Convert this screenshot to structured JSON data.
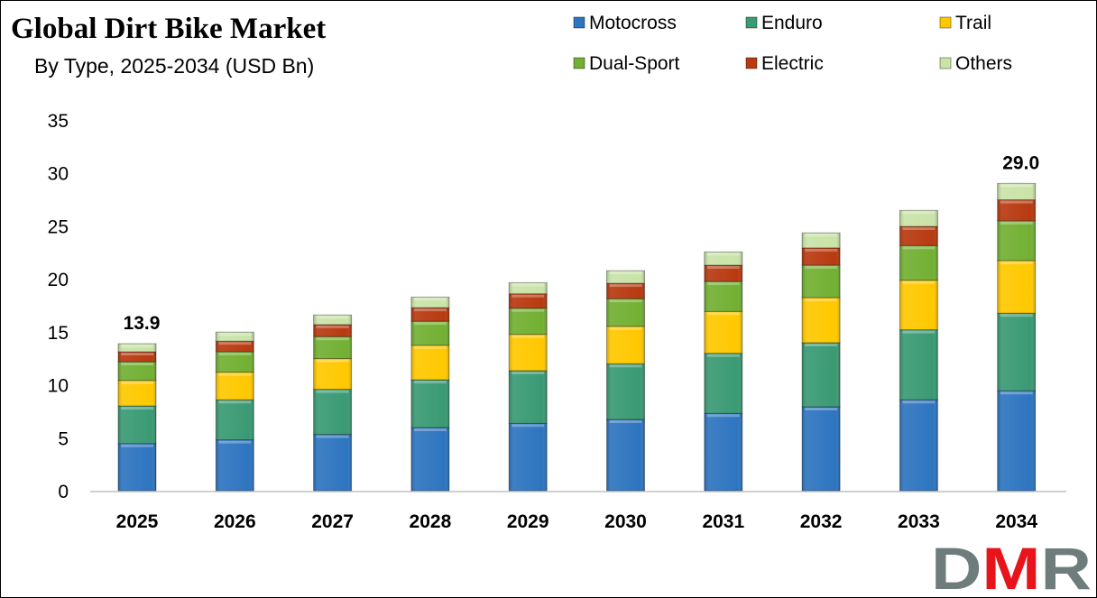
{
  "chart_data": {
    "type": "bar",
    "stacked": true,
    "title": "Global Dirt Bike Market",
    "subtitle": "By Type, 2025-2034 (USD Bn)",
    "xlabel": "",
    "ylabel": "",
    "ylim": [
      0,
      35
    ],
    "yticks": [
      0,
      5,
      10,
      15,
      20,
      25,
      30,
      35
    ],
    "grid": false,
    "legend_position": "top-right",
    "categories": [
      "2025",
      "2026",
      "2027",
      "2028",
      "2029",
      "2030",
      "2031",
      "2032",
      "2033",
      "2034"
    ],
    "series": [
      {
        "name": "Motocross",
        "color": "#2E75C0",
        "values": [
          4.45,
          4.8,
          5.31,
          5.96,
          6.36,
          6.73,
          7.3,
          7.92,
          8.58,
          9.43
        ]
      },
      {
        "name": "Enduro",
        "color": "#3A9A74",
        "values": [
          3.55,
          3.78,
          4.26,
          4.51,
          4.97,
          5.25,
          5.67,
          6.05,
          6.61,
          7.33
        ]
      },
      {
        "name": "Trail",
        "color": "#FFC800",
        "values": [
          2.41,
          2.61,
          2.9,
          3.26,
          3.43,
          3.54,
          3.95,
          4.26,
          4.68,
          4.97
        ]
      },
      {
        "name": "Dual-Sport",
        "color": "#72B033",
        "values": [
          1.76,
          1.93,
          2.08,
          2.27,
          2.47,
          2.61,
          2.84,
          3.07,
          3.27,
          3.75
        ]
      },
      {
        "name": "Electric",
        "color": "#B83A10",
        "values": [
          0.94,
          1.0,
          1.13,
          1.28,
          1.36,
          1.45,
          1.53,
          1.62,
          1.81,
          1.98
        ]
      },
      {
        "name": "Others",
        "color": "#C9E3A8",
        "values": [
          0.77,
          0.85,
          0.91,
          1.0,
          1.05,
          1.19,
          1.25,
          1.42,
          1.51,
          1.55
        ]
      }
    ],
    "data_labels": [
      {
        "category": "2025",
        "text": "13.9"
      },
      {
        "category": "2034",
        "text": "29.0"
      }
    ]
  },
  "logo": {
    "text": "DMR",
    "colors": [
      "#6E7C7C",
      "#E8141B",
      "#6E7C7C"
    ]
  }
}
